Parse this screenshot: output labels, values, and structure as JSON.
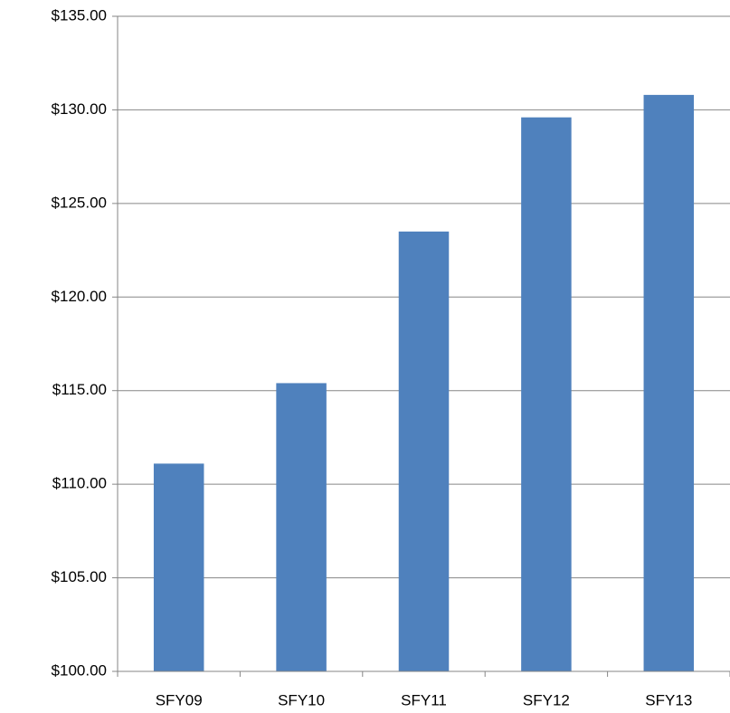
{
  "chart_data": {
    "type": "bar",
    "categories": [
      "SFY09",
      "SFY10",
      "SFY11",
      "SFY12",
      "SFY13"
    ],
    "values": [
      111.1,
      115.4,
      123.5,
      129.6,
      130.8
    ],
    "color": "#4f81bd",
    "ylim": [
      100,
      135
    ],
    "yticks": [
      {
        "value": 100,
        "label": "$100.00"
      },
      {
        "value": 105,
        "label": "$105.00"
      },
      {
        "value": 110,
        "label": "$110.00"
      },
      {
        "value": 115,
        "label": "$115.00"
      },
      {
        "value": 120,
        "label": "$120.00"
      },
      {
        "value": 125,
        "label": "$125.00"
      },
      {
        "value": 130,
        "label": "$130.00"
      },
      {
        "value": 135,
        "label": "$135.00"
      }
    ],
    "grid": true
  }
}
